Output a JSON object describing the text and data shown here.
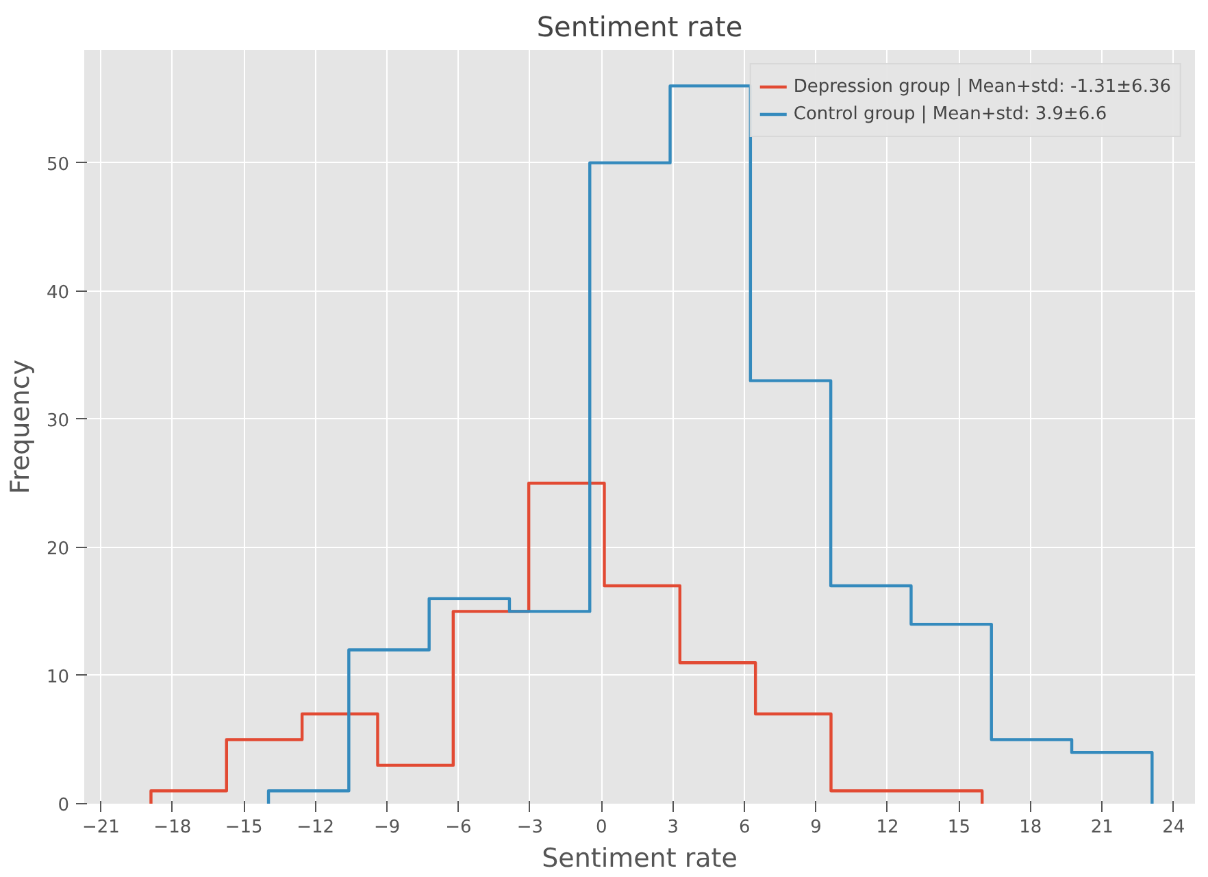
{
  "chart_data": {
    "type": "step",
    "title": "Sentiment rate",
    "xlabel": "Sentiment rate",
    "ylabel": "Frequency",
    "series": [
      {
        "name": "Depression group | Mean+std: -1.31±6.36",
        "color": "#e24a33",
        "x": [
          -18.9,
          -18.9,
          -15.73,
          -12.56,
          -9.39,
          -6.22,
          -3.05,
          0.12,
          3.29,
          6.46,
          9.63,
          12.8,
          15.97
        ],
        "values": [
          0,
          1,
          5,
          7,
          3,
          15,
          25,
          17,
          11,
          7,
          1,
          1,
          0
        ]
      },
      {
        "name": "Control group | Mean+std: 3.9±6.6",
        "color": "#348abd",
        "x": [
          -13.97,
          -13.97,
          -10.6,
          -7.23,
          -3.86,
          -0.49,
          2.88,
          6.25,
          9.62,
          12.99,
          16.36,
          19.73,
          23.1
        ],
        "values": [
          0,
          1,
          12,
          16,
          15,
          50,
          56,
          33,
          17,
          14,
          5,
          4,
          0
        ]
      }
    ],
    "xlim": [
      -21.7,
      24.9
    ],
    "ylim": [
      0,
      58.8
    ],
    "xticks": [
      {
        "value": -21,
        "label": "−21"
      },
      {
        "value": -18,
        "label": "−18"
      },
      {
        "value": -15,
        "label": "−15"
      },
      {
        "value": -12,
        "label": "−12"
      },
      {
        "value": -9,
        "label": "−9"
      },
      {
        "value": -6,
        "label": "−6"
      },
      {
        "value": -3,
        "label": "−3"
      },
      0,
      3,
      6,
      9,
      12,
      15,
      18,
      21,
      24
    ],
    "yticks": [
      0,
      10,
      20,
      30,
      40,
      50
    ],
    "grid": true,
    "legend": "top right"
  }
}
